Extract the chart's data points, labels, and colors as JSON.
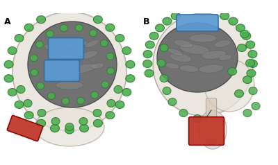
{
  "figsize": [
    4.0,
    2.38
  ],
  "dpi": 100,
  "background_color": "#ffffff",
  "panel_labels": [
    "A",
    "B"
  ],
  "panel_label_fontsize": 9,
  "panel_label_fontweight": "bold",
  "electrode_blue": "#5b9bd5",
  "electrode_red": "#c0392b",
  "dot_color": "#4CAF50",
  "dot_edge": "#2d7a2d",
  "head_fill": "#e8e3db",
  "head_edge": "#b0a89e",
  "brain_fill": "#6b6b6b",
  "brain_edge": "#4a4a4a"
}
